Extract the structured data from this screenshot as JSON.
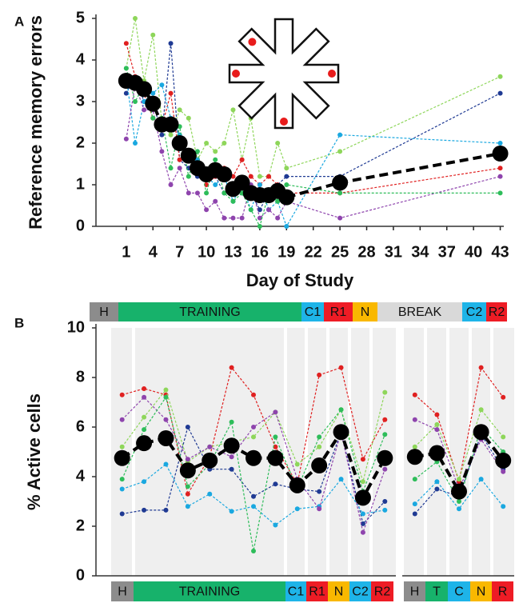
{
  "chart_data": [
    {
      "type": "line",
      "panel_label": "A",
      "y_label": "Reference memory errors",
      "x_label": "Day of Study",
      "x": [
        1,
        2,
        3,
        4,
        5,
        6,
        7,
        8,
        9,
        10,
        11,
        12,
        13,
        14,
        15,
        16,
        17,
        18,
        19,
        25,
        43
      ],
      "xlim": [
        -2.4,
        43.4
      ],
      "xticks": [
        1,
        4,
        7,
        10,
        13,
        16,
        19,
        22,
        25,
        28,
        31,
        34,
        37,
        40,
        43
      ],
      "ylim": [
        0,
        5
      ],
      "yticks": [
        0,
        1,
        2,
        3,
        4,
        5
      ],
      "series": [
        {
          "color": "#8ed65a",
          "values": [
            3.8,
            5.0,
            3.5,
            4.6,
            2.5,
            2.2,
            2.8,
            2.6,
            1.6,
            2.0,
            1.8,
            2.0,
            2.8,
            1.6,
            2.6,
            1.2,
            1.2,
            2.0,
            1.4,
            1.8,
            3.6
          ]
        },
        {
          "color": "#1f3a93",
          "values": [
            3.2,
            3.6,
            3.0,
            3.0,
            2.2,
            4.4,
            1.6,
            1.4,
            1.2,
            1.2,
            1.2,
            0.8,
            0.8,
            0.8,
            0.8,
            0.4,
            0.8,
            1.0,
            1.2,
            1.2,
            3.2
          ]
        },
        {
          "color": "#e02020",
          "values": [
            4.4,
            3.6,
            3.2,
            2.6,
            2.4,
            3.2,
            1.6,
            1.8,
            1.6,
            1.0,
            1.2,
            1.4,
            1.2,
            1.6,
            1.2,
            1.0,
            1.2,
            1.0,
            0.8,
            0.8,
            1.4
          ]
        },
        {
          "color": "#1aa8e0",
          "values": [
            3.6,
            2.0,
            3.0,
            3.2,
            3.4,
            2.6,
            2.2,
            1.6,
            1.6,
            1.2,
            1.0,
            1.2,
            0.6,
            1.0,
            0.4,
            1.0,
            0.4,
            0.6,
            0.0,
            2.2,
            2.0
          ]
        },
        {
          "color": "#8e44ad",
          "values": [
            2.1,
            3.4,
            2.8,
            2.8,
            1.8,
            1.0,
            1.4,
            0.8,
            0.8,
            0.4,
            0.6,
            0.2,
            0.2,
            0.2,
            1.0,
            0.2,
            0.4,
            0.2,
            0.6,
            0.2,
            1.2
          ]
        },
        {
          "color": "#2ebd5a",
          "values": [
            3.8,
            3.0,
            3.4,
            2.6,
            2.6,
            1.4,
            2.4,
            1.2,
            1.8,
            0.8,
            1.6,
            0.8,
            0.6,
            0.8,
            0.4,
            0.0,
            0.8,
            0.6,
            1.0,
            0.8,
            0.8
          ]
        },
        {
          "color": "#000000",
          "line_style": "dashed",
          "marker": "large",
          "values": [
            3.5,
            3.45,
            3.3,
            2.95,
            2.45,
            2.45,
            2.0,
            1.7,
            1.4,
            1.25,
            1.35,
            1.25,
            0.9,
            1.05,
            0.8,
            0.75,
            0.75,
            0.85,
            0.7,
            1.05,
            1.75
          ]
        }
      ],
      "phases": [
        {
          "label": "H",
          "color": "#8c8c8c"
        },
        {
          "label": "TRAINING",
          "color": "#17b26b"
        },
        {
          "label": "C1",
          "color": "#1eb4e8"
        },
        {
          "label": "R1",
          "color": "#ee1c25"
        },
        {
          "label": "N",
          "color": "#f9b800"
        },
        {
          "label": "BREAK",
          "color": "#d9d9d9"
        },
        {
          "label": "C2",
          "color": "#1eb4e8"
        },
        {
          "label": "R2",
          "color": "#ee1c25"
        }
      ]
    },
    {
      "type": "line",
      "panel_label": "B",
      "y_label": "% Active cells",
      "categories": [
        null,
        null,
        null,
        null,
        null,
        null,
        null,
        null,
        null,
        null,
        null,
        null,
        null
      ],
      "ylim": [
        0,
        10
      ],
      "yticks": [
        0,
        2,
        4,
        6,
        8,
        10
      ],
      "series": [
        {
          "color": "#e02020",
          "values": [
            7.3,
            7.55,
            7.3,
            3.3,
            4.8,
            8.4,
            7.3,
            5.2,
            3.7,
            8.1,
            8.4,
            4.7,
            6.3
          ]
        },
        {
          "color": "#8ed65a",
          "values": [
            5.2,
            6.4,
            7.5,
            4.6,
            5.2,
            5.4,
            5.6,
            6.6,
            4.5,
            5.2,
            6.7,
            3.8,
            7.4
          ]
        },
        {
          "color": "#1f3a93",
          "values": [
            2.5,
            2.65,
            2.65,
            6.0,
            4.3,
            4.3,
            3.2,
            3.7,
            3.5,
            3.4,
            5.8,
            2.1,
            3.0
          ]
        },
        {
          "color": "#1aa8e0",
          "values": [
            3.5,
            3.8,
            4.5,
            2.8,
            3.3,
            2.6,
            2.8,
            2.05,
            2.7,
            2.8,
            3.9,
            2.5,
            2.65
          ]
        },
        {
          "color": "#8e44ad",
          "values": [
            6.3,
            7.2,
            6.3,
            4.7,
            5.2,
            4.8,
            6.0,
            6.6,
            3.9,
            2.7,
            5.8,
            1.75,
            4.3
          ]
        },
        {
          "color": "#2ebd5a",
          "values": [
            3.9,
            5.9,
            7.2,
            3.6,
            4.5,
            6.2,
            1.0,
            5.6,
            3.5,
            5.6,
            6.7,
            3.4,
            5.7
          ]
        },
        {
          "color": "#000000",
          "line_style": "dashed",
          "marker": "large",
          "values": [
            4.75,
            5.35,
            5.55,
            4.25,
            4.65,
            5.25,
            4.75,
            4.75,
            3.65,
            4.45,
            5.8,
            3.15,
            4.75
          ]
        }
      ],
      "phases": [
        {
          "label": "H",
          "color": "#8c8c8c"
        },
        {
          "label": "TRAINING",
          "color": "#17b26b"
        },
        {
          "label": "C1",
          "color": "#1eb4e8"
        },
        {
          "label": "R1",
          "color": "#ee1c25"
        },
        {
          "label": "N",
          "color": "#f9b800"
        },
        {
          "label": "C2",
          "color": "#1eb4e8"
        },
        {
          "label": "R2",
          "color": "#ee1c25"
        }
      ]
    },
    {
      "type": "line",
      "categories": [
        null,
        null,
        null,
        null,
        null
      ],
      "ylim": [
        0,
        10
      ],
      "series": [
        {
          "color": "#e02020",
          "values": [
            7.3,
            6.5,
            3.8,
            8.4,
            7.2
          ]
        },
        {
          "color": "#8ed65a",
          "values": [
            5.2,
            6.1,
            3.9,
            6.7,
            5.6
          ]
        },
        {
          "color": "#1f3a93",
          "values": [
            2.5,
            3.5,
            3.2,
            5.7,
            4.3
          ]
        },
        {
          "color": "#1aa8e0",
          "values": [
            2.9,
            3.8,
            2.7,
            3.9,
            2.8
          ]
        },
        {
          "color": "#8e44ad",
          "values": [
            6.3,
            5.9,
            3.5,
            5.5,
            4.2
          ]
        },
        {
          "color": "#2ebd5a",
          "values": [
            3.9,
            4.6,
            3.0,
            6.0,
            5.0
          ]
        },
        {
          "color": "#000000",
          "line_style": "dashed",
          "marker": "large",
          "values": [
            4.8,
            4.95,
            3.4,
            5.8,
            4.65
          ]
        }
      ],
      "phases": [
        {
          "label": "H",
          "color": "#8c8c8c"
        },
        {
          "label": "T",
          "color": "#17b26b"
        },
        {
          "label": "C",
          "color": "#1eb4e8"
        },
        {
          "label": "N",
          "color": "#f9b800"
        },
        {
          "label": "R",
          "color": "#ee1c25"
        }
      ]
    }
  ]
}
